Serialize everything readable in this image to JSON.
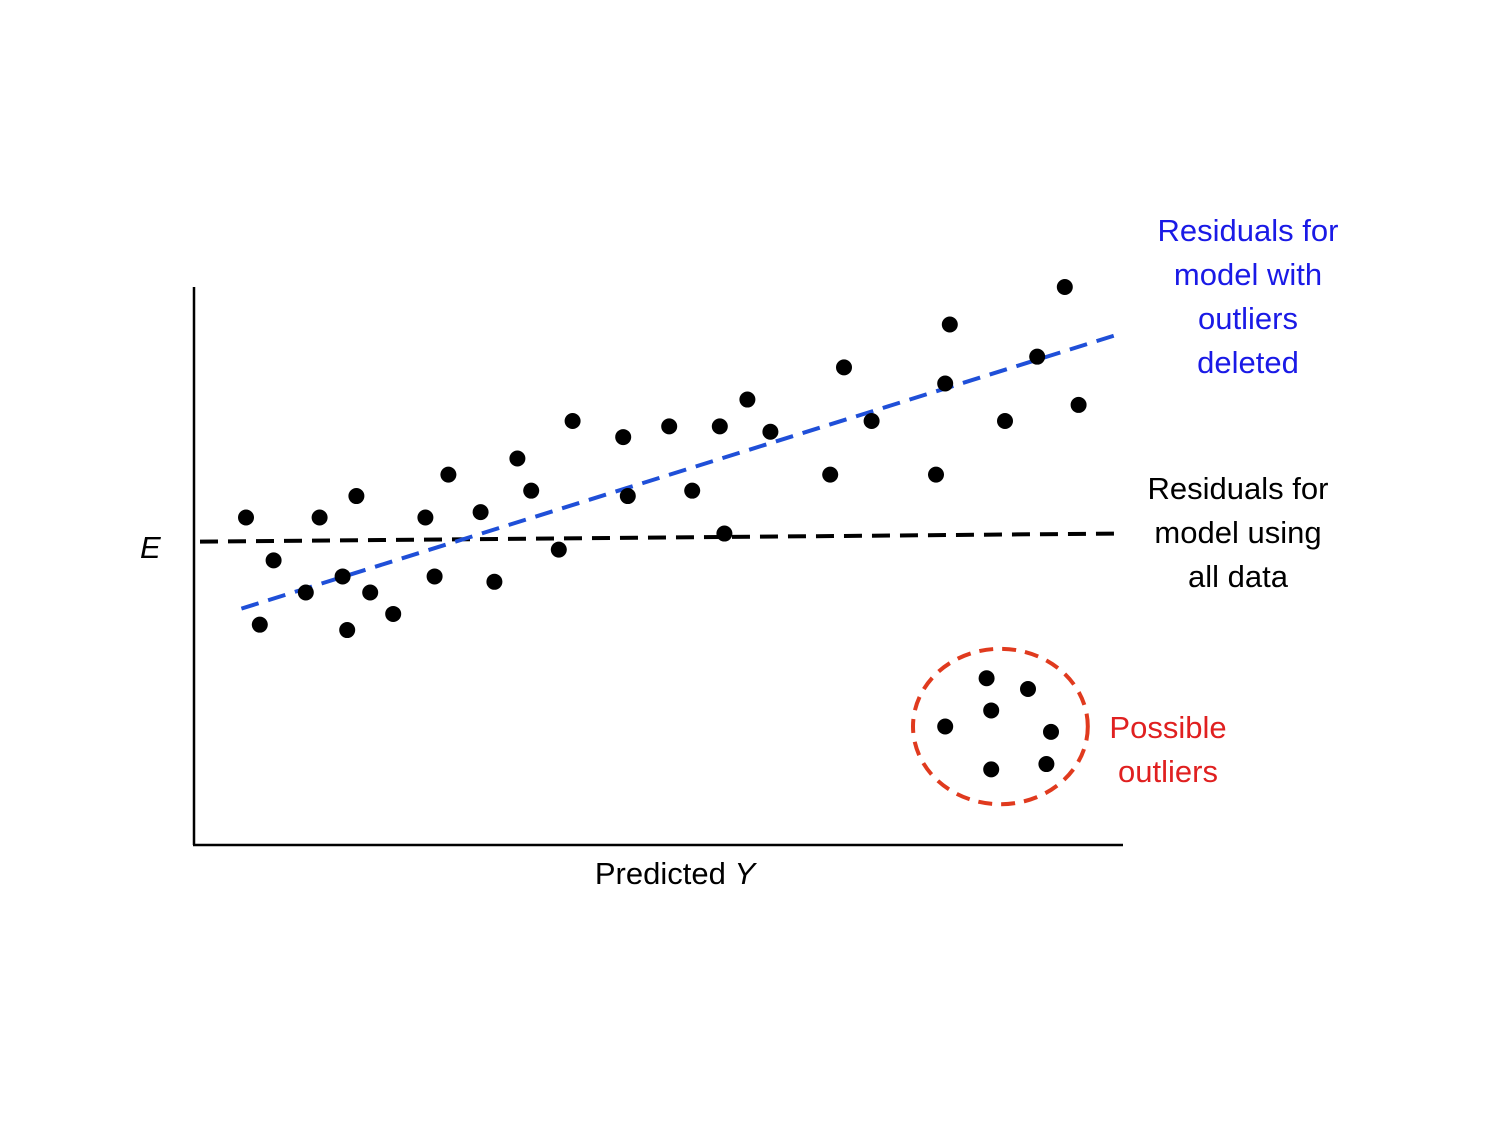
{
  "chart_data": {
    "type": "scatter",
    "title": "",
    "xlabel": "Predicted",
    "xlabel_var": "Y",
    "ylabel": "E",
    "xlim": [
      0,
      100
    ],
    "ylim": [
      0,
      100
    ],
    "grid": false,
    "points": [
      {
        "x": 5,
        "y": 57
      },
      {
        "x": 6.5,
        "y": 37
      },
      {
        "x": 8,
        "y": 49
      },
      {
        "x": 11.5,
        "y": 43
      },
      {
        "x": 13,
        "y": 57
      },
      {
        "x": 15.5,
        "y": 46
      },
      {
        "x": 16,
        "y": 36
      },
      {
        "x": 17,
        "y": 61
      },
      {
        "x": 18.5,
        "y": 43
      },
      {
        "x": 21,
        "y": 39
      },
      {
        "x": 24.5,
        "y": 57
      },
      {
        "x": 25.5,
        "y": 46
      },
      {
        "x": 27,
        "y": 65
      },
      {
        "x": 30.5,
        "y": 58
      },
      {
        "x": 32,
        "y": 45
      },
      {
        "x": 34.5,
        "y": 68
      },
      {
        "x": 36,
        "y": 62
      },
      {
        "x": 39,
        "y": 51
      },
      {
        "x": 40.5,
        "y": 75
      },
      {
        "x": 46,
        "y": 72
      },
      {
        "x": 46.5,
        "y": 61
      },
      {
        "x": 51,
        "y": 74
      },
      {
        "x": 53.5,
        "y": 62
      },
      {
        "x": 56.5,
        "y": 74
      },
      {
        "x": 57,
        "y": 54
      },
      {
        "x": 59.5,
        "y": 79
      },
      {
        "x": 62,
        "y": 73
      },
      {
        "x": 68.5,
        "y": 65
      },
      {
        "x": 70,
        "y": 85
      },
      {
        "x": 73,
        "y": 75
      },
      {
        "x": 80,
        "y": 65
      },
      {
        "x": 81,
        "y": 82
      },
      {
        "x": 81.5,
        "y": 93
      },
      {
        "x": 87.5,
        "y": 75
      },
      {
        "x": 91,
        "y": 87
      },
      {
        "x": 94,
        "y": 100
      },
      {
        "x": 95.5,
        "y": 78
      }
    ],
    "outliers": [
      {
        "x": 81,
        "y": 18
      },
      {
        "x": 85.5,
        "y": 27
      },
      {
        "x": 86,
        "y": 21
      },
      {
        "x": 86,
        "y": 10
      },
      {
        "x": 90,
        "y": 25
      },
      {
        "x": 92,
        "y": 11
      },
      {
        "x": 92.5,
        "y": 17
      }
    ],
    "series": [
      {
        "name": "Residuals for model with outliers deleted",
        "style": "dashed",
        "color": "#1f4fd8",
        "x": [
          4.5,
          99.5
        ],
        "y": [
          40,
          91
        ]
      },
      {
        "name": "Residuals for model using all data",
        "style": "dashed",
        "color": "#000000",
        "x": [
          0,
          99.5
        ],
        "y": [
          52.5,
          54
        ]
      }
    ],
    "outlier_region": {
      "label": "Possible outliers",
      "color": "#e03a1e",
      "center": {
        "x": 87,
        "y": 18
      },
      "rx": 9.5,
      "ry": 14.5
    },
    "annotations": [
      {
        "id": "blue",
        "color": "#1a1ae6",
        "lines": [
          "Residuals for",
          "model with",
          "outliers",
          "deleted"
        ]
      },
      {
        "id": "black",
        "color": "#000000",
        "lines": [
          "Residuals for",
          "model using",
          "all data"
        ]
      },
      {
        "id": "red",
        "color": "#e02020",
        "lines": [
          "Possible",
          "outliers"
        ]
      }
    ]
  }
}
